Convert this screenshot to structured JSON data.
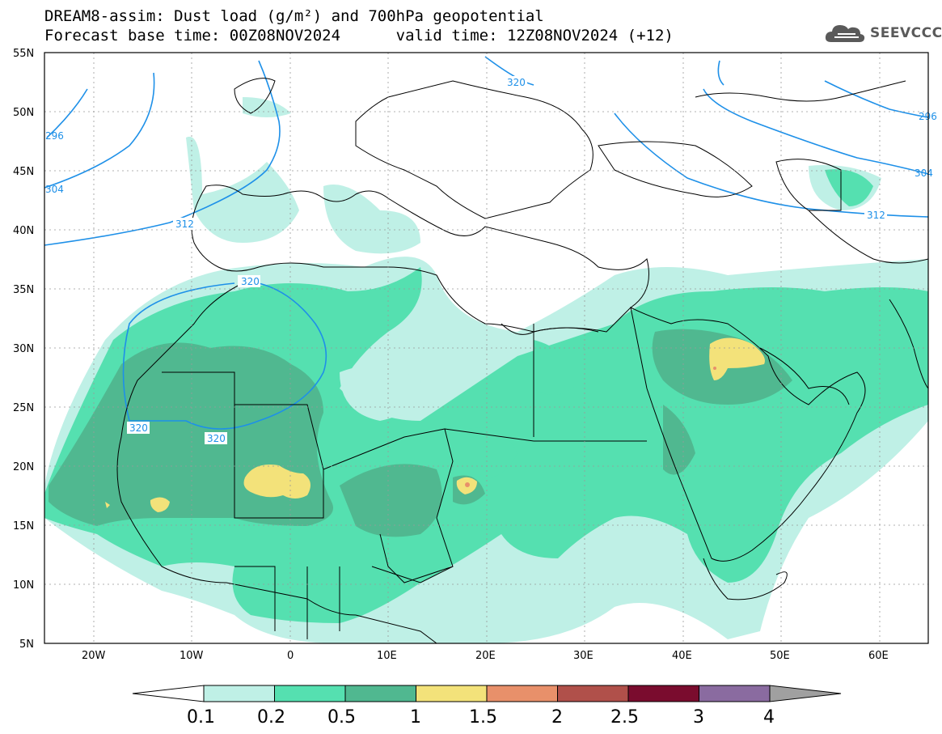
{
  "header": {
    "line1": "DREAM8-assim: Dust load (g/m²) and 700hPa geopotential",
    "line2": "Forecast base time: 00Z08NOV2024      valid time: 12Z08NOV2024 (+12)"
  },
  "logo": {
    "text": "SEEVCCC",
    "icon": "cloud-icon"
  },
  "axes": {
    "lat_labels": [
      "55N",
      "50N",
      "45N",
      "40N",
      "35N",
      "30N",
      "25N",
      "20N",
      "15N",
      "10N",
      "5N"
    ],
    "lon_labels": [
      "20W",
      "10W",
      "0",
      "10E",
      "20E",
      "30E",
      "40E",
      "50E",
      "60E"
    ],
    "lon_range": [
      -25,
      65
    ],
    "lat_range": [
      5,
      55
    ]
  },
  "contours": {
    "labels": [
      "320",
      "320",
      "320",
      "320",
      "312",
      "312",
      "296",
      "304",
      "304",
      "296"
    ],
    "color": "#1e90e8"
  },
  "colorbar": {
    "ticks": [
      "0.1",
      "0.2",
      "0.5",
      "1",
      "1.5",
      "2",
      "2.5",
      "3",
      "4"
    ],
    "colors": [
      "#ffffff",
      "#bff0e6",
      "#55e0b0",
      "#50b890",
      "#f3e27a",
      "#e8906a",
      "#b0504a",
      "#7a0c2e",
      "#8a6ba0",
      "#a0a0a0"
    ]
  }
}
